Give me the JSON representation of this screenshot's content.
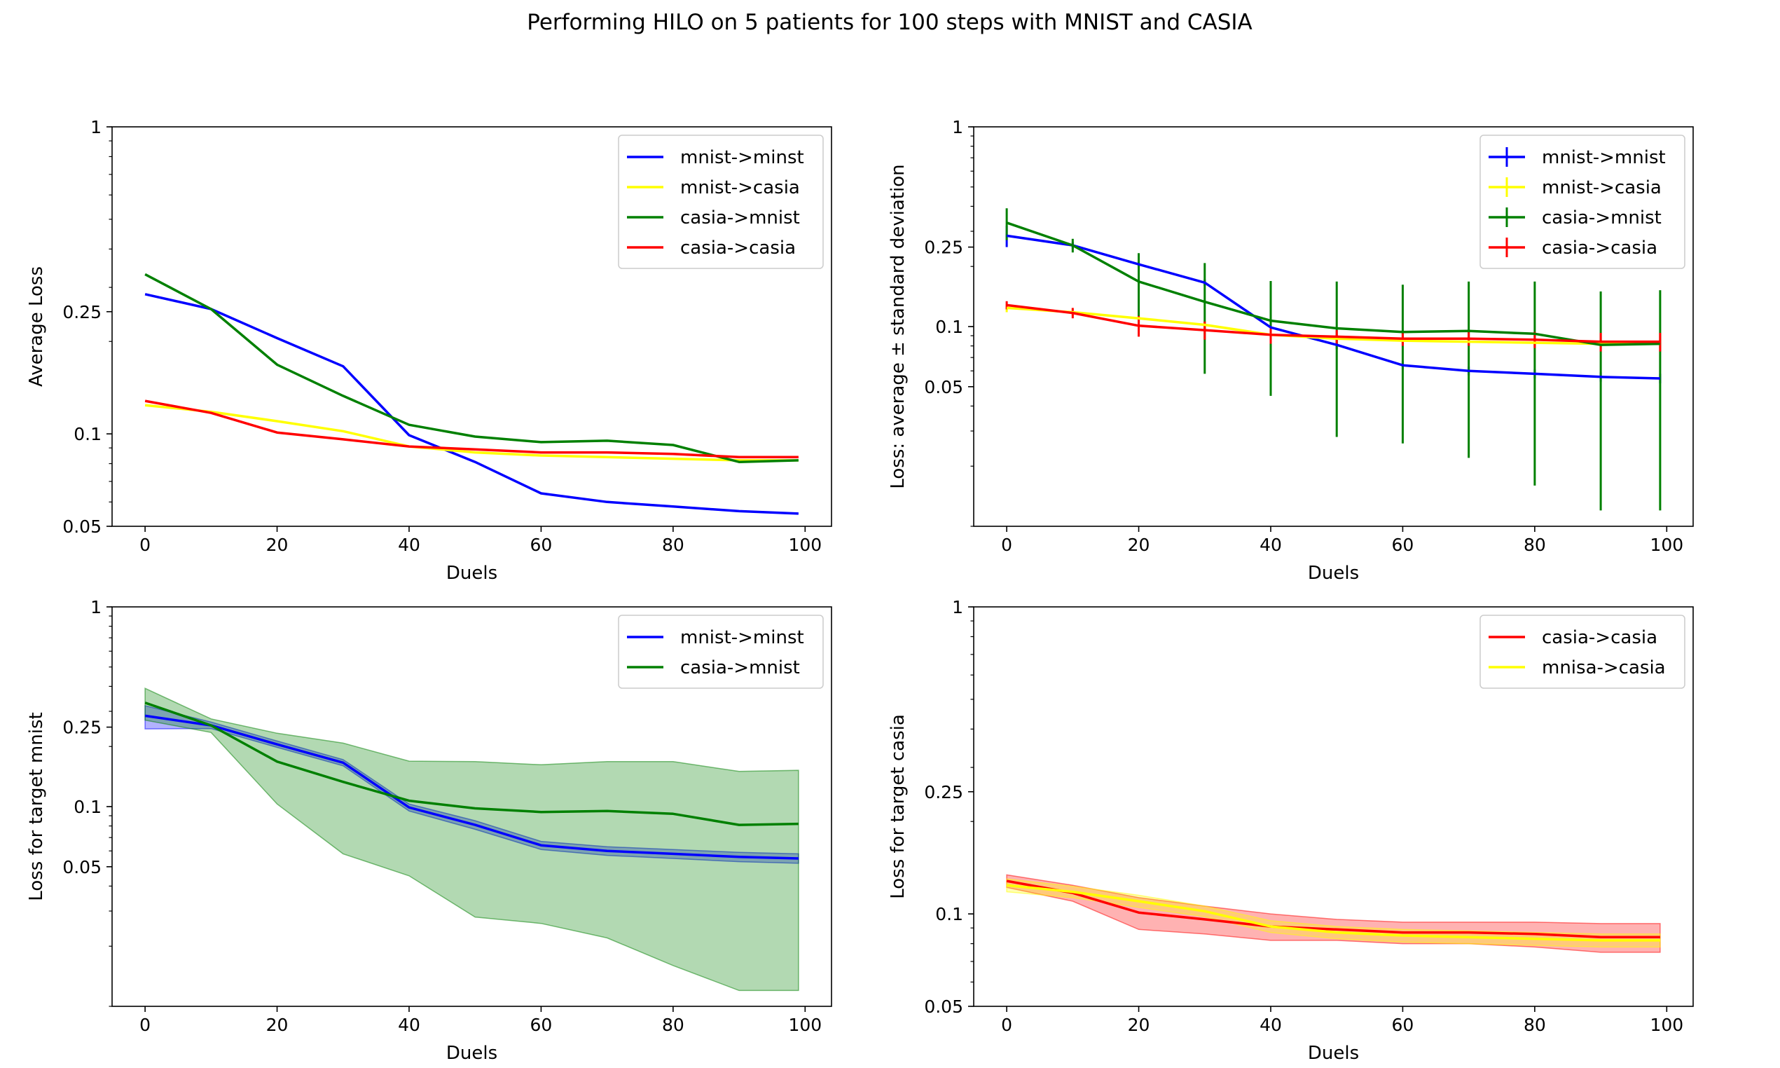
{
  "figure": {
    "title": "Performing HILO on 5 patients for 100 steps with MNIST and CASIA"
  },
  "chart_data": [
    {
      "type": "line",
      "xlabel": "Duels",
      "ylabel": "Average Loss",
      "yscale": "log",
      "xlim": [
        -5,
        104
      ],
      "ylim": [
        0.05,
        1
      ],
      "xticks": [
        0,
        20,
        40,
        60,
        80,
        100
      ],
      "yticks": [
        0.05,
        0.1,
        0.25,
        1
      ],
      "yticklabels": [
        "0.05",
        "0.1",
        "0.25",
        "1"
      ],
      "legend_loc": "upper right",
      "x": [
        0,
        10,
        20,
        30,
        40,
        50,
        60,
        70,
        80,
        90,
        99
      ],
      "series": [
        {
          "name": "mnist->minst",
          "color": "#0000ff",
          "values": [
            0.285,
            0.255,
            0.205,
            0.166,
            0.099,
            0.081,
            0.064,
            0.06,
            0.058,
            0.056,
            0.055
          ]
        },
        {
          "name": "mnist->casia",
          "color": "#ffff00",
          "values": [
            0.124,
            0.118,
            0.11,
            0.102,
            0.091,
            0.087,
            0.085,
            0.084,
            0.083,
            0.082,
            0.082
          ]
        },
        {
          "name": "casia->mnist",
          "color": "#008000",
          "values": [
            0.331,
            0.255,
            0.168,
            0.133,
            0.107,
            0.098,
            0.094,
            0.095,
            0.092,
            0.081,
            0.082
          ]
        },
        {
          "name": "casia->casia",
          "color": "#ff0000",
          "values": [
            0.128,
            0.117,
            0.101,
            0.096,
            0.091,
            0.089,
            0.087,
            0.087,
            0.086,
            0.084,
            0.084
          ]
        }
      ]
    },
    {
      "type": "line",
      "subtype": "errorbar",
      "xlabel": "Duels",
      "ylabel": "Loss: average ± standard deviation",
      "yscale": "log",
      "xlim": [
        -5,
        104
      ],
      "ylim": [
        0.01,
        1
      ],
      "xticks": [
        0,
        20,
        40,
        60,
        80,
        100
      ],
      "yticks": [
        0.05,
        0.1,
        0.25,
        1
      ],
      "yticklabels": [
        "0.05",
        "0.1",
        "0.25",
        "1"
      ],
      "legend_loc": "upper right",
      "x": [
        0,
        10,
        20,
        30,
        40,
        50,
        60,
        70,
        80,
        90,
        99
      ],
      "series": [
        {
          "name": "mnist->mnist",
          "color": "#0000ff",
          "values": [
            0.285,
            0.255,
            0.205,
            0.166,
            0.099,
            0.081,
            0.064,
            0.06,
            0.058,
            0.056,
            0.055
          ],
          "error": [
            0.035,
            0.01,
            0.008,
            0.006,
            0.004,
            0.004,
            0.003,
            0.003,
            0.003,
            0.003,
            0.003
          ]
        },
        {
          "name": "mnist->casia",
          "color": "#ffff00",
          "values": [
            0.124,
            0.118,
            0.11,
            0.102,
            0.091,
            0.087,
            0.085,
            0.084,
            0.083,
            0.082,
            0.082
          ],
          "error": [
            0.006,
            0.005,
            0.005,
            0.004,
            0.004,
            0.004,
            0.004,
            0.004,
            0.004,
            0.004,
            0.004
          ]
        },
        {
          "name": "casia->mnist",
          "color": "#008000",
          "values": [
            0.331,
            0.255,
            0.168,
            0.133,
            0.107,
            0.098,
            0.094,
            0.095,
            0.092,
            0.081,
            0.082
          ],
          "error": [
            0.06,
            0.02,
            0.065,
            0.075,
            0.062,
            0.07,
            0.068,
            0.073,
            0.076,
            0.069,
            0.07
          ]
        },
        {
          "name": "casia->casia",
          "color": "#ff0000",
          "values": [
            0.128,
            0.117,
            0.101,
            0.096,
            0.091,
            0.089,
            0.087,
            0.087,
            0.086,
            0.084,
            0.084
          ],
          "error": [
            0.006,
            0.007,
            0.012,
            0.01,
            0.009,
            0.007,
            0.007,
            0.007,
            0.008,
            0.009,
            0.009
          ]
        }
      ]
    },
    {
      "type": "area",
      "xlabel": "Duels",
      "ylabel": "Loss for target mnist",
      "yscale": "log",
      "xlim": [
        -5,
        104
      ],
      "ylim": [
        0.01,
        1
      ],
      "xticks": [
        0,
        20,
        40,
        60,
        80,
        100
      ],
      "yticks": [
        0.05,
        0.1,
        0.25,
        1
      ],
      "yticklabels": [
        "0.05",
        "0.1",
        "0.25",
        "1"
      ],
      "legend_loc": "upper right",
      "x": [
        0,
        10,
        20,
        30,
        40,
        50,
        60,
        70,
        80,
        90,
        99
      ],
      "series": [
        {
          "name": "mnist->minst",
          "color": "#0000ff",
          "fill_alpha": 0.3,
          "values": [
            0.285,
            0.255,
            0.205,
            0.166,
            0.099,
            0.081,
            0.064,
            0.06,
            0.058,
            0.056,
            0.055
          ],
          "lower": [
            0.245,
            0.246,
            0.198,
            0.16,
            0.095,
            0.077,
            0.061,
            0.057,
            0.055,
            0.053,
            0.052
          ],
          "upper": [
            0.32,
            0.265,
            0.213,
            0.172,
            0.103,
            0.085,
            0.067,
            0.063,
            0.061,
            0.059,
            0.058
          ]
        },
        {
          "name": "casia->mnist",
          "color": "#008000",
          "fill_alpha": 0.3,
          "values": [
            0.331,
            0.255,
            0.168,
            0.133,
            0.107,
            0.098,
            0.094,
            0.095,
            0.092,
            0.081,
            0.082
          ],
          "lower": [
            0.271,
            0.235,
            0.103,
            0.058,
            0.045,
            0.028,
            0.026,
            0.022,
            0.016,
            0.012,
            0.012
          ],
          "upper": [
            0.391,
            0.275,
            0.233,
            0.208,
            0.169,
            0.168,
            0.162,
            0.168,
            0.168,
            0.15,
            0.152
          ]
        }
      ]
    },
    {
      "type": "area",
      "xlabel": "Duels",
      "ylabel": "Loss for target casia",
      "yscale": "log",
      "xlim": [
        -5,
        104
      ],
      "ylim": [
        0.05,
        1
      ],
      "xticks": [
        0,
        20,
        40,
        60,
        80,
        100
      ],
      "yticks": [
        0.05,
        0.1,
        0.25,
        1
      ],
      "yticklabels": [
        "0.05",
        "0.1",
        "0.25",
        "1"
      ],
      "legend_loc": "upper right",
      "x": [
        0,
        10,
        20,
        30,
        40,
        50,
        60,
        70,
        80,
        90,
        99
      ],
      "series": [
        {
          "name": "casia->casia",
          "color": "#ff0000",
          "fill_alpha": 0.3,
          "values": [
            0.128,
            0.117,
            0.101,
            0.096,
            0.091,
            0.089,
            0.087,
            0.087,
            0.086,
            0.084,
            0.084
          ],
          "lower": [
            0.122,
            0.11,
            0.089,
            0.086,
            0.082,
            0.082,
            0.08,
            0.08,
            0.078,
            0.075,
            0.075
          ],
          "upper": [
            0.134,
            0.124,
            0.113,
            0.106,
            0.1,
            0.096,
            0.094,
            0.094,
            0.094,
            0.093,
            0.093
          ]
        },
        {
          "name": "mnisa->casia",
          "color": "#ffff00",
          "fill_alpha": 0.3,
          "values": [
            0.124,
            0.118,
            0.11,
            0.102,
            0.091,
            0.087,
            0.085,
            0.084,
            0.083,
            0.082,
            0.082
          ],
          "lower": [
            0.118,
            0.113,
            0.105,
            0.098,
            0.087,
            0.083,
            0.081,
            0.08,
            0.079,
            0.078,
            0.078
          ],
          "upper": [
            0.13,
            0.123,
            0.115,
            0.106,
            0.095,
            0.091,
            0.089,
            0.088,
            0.087,
            0.086,
            0.086
          ]
        }
      ]
    }
  ]
}
